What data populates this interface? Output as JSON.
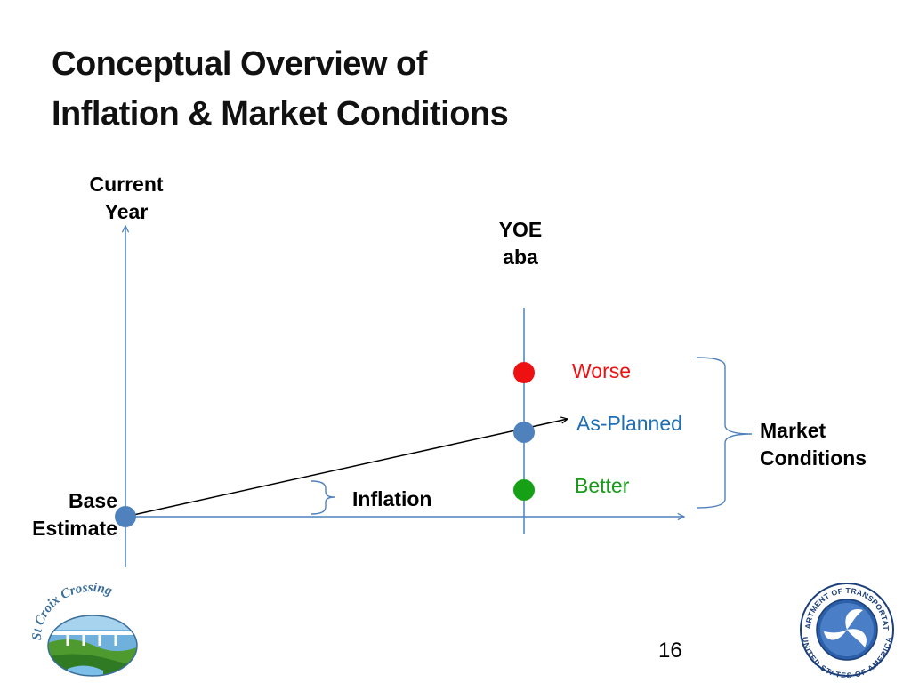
{
  "title": {
    "line1": "Conceptual Overview of",
    "line2": "Inflation & Market Conditions"
  },
  "diagram": {
    "y_axis_label": {
      "line1": "Current",
      "line2": "Year"
    },
    "yoe_label": {
      "line1": "YOE",
      "line2": "aba"
    },
    "base_label": {
      "line1": "Base",
      "line2": "Estimate"
    },
    "inflation_label": "Inflation",
    "market_label": {
      "line1": "Market",
      "line2": "Conditions"
    },
    "conditions": [
      {
        "label": "Worse",
        "color": "#ee1111"
      },
      {
        "label": "As-Planned",
        "color": "#1f6fb4"
      },
      {
        "label": "Better",
        "color": "#1a9a1a"
      }
    ],
    "colors": {
      "axis": "#4f81bd",
      "point_blue": "#4f81bd",
      "point_red": "#ee1111",
      "point_green": "#16a016",
      "arrow": "#000000"
    }
  },
  "logos": {
    "left_text": "St Croix Crossing",
    "right_text_top": "DEPARTMENT OF TRANSPORTATION",
    "right_text_bottom": "UNITED STATES OF AMERICA"
  },
  "page_number": "16"
}
